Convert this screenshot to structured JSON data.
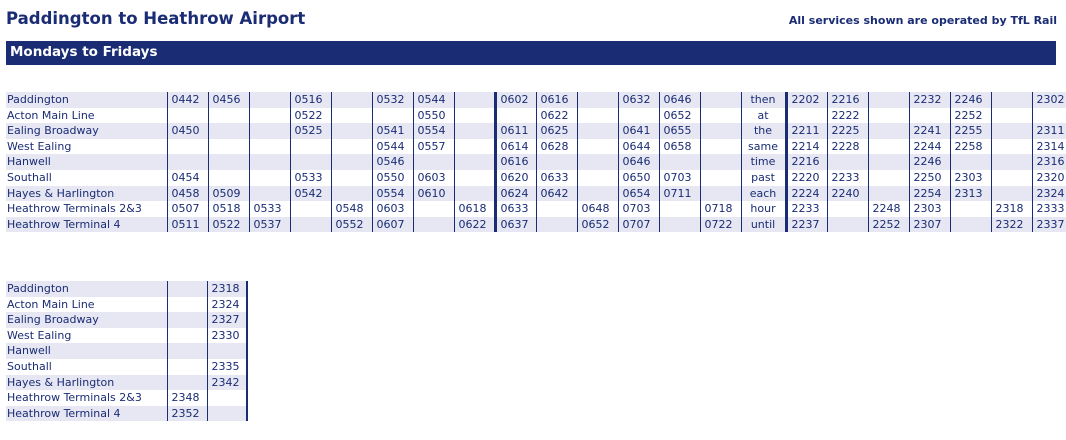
{
  "header": {
    "title": "Paddington to Heathrow Airport",
    "operated_by": "All services shown are operated by TfL Rail",
    "day_banner": "Mondays to Fridays"
  },
  "stations": [
    "Paddington",
    "Acton Main Line",
    "Ealing Broadway",
    "West Ealing",
    "Hanwell",
    "Southall",
    "Hayes & Harlington",
    "Heathrow Terminals 2&3",
    "Heathrow Terminal 4"
  ],
  "table1": {
    "interval_text": [
      "then",
      "at",
      "the",
      "same",
      "time",
      "past",
      "each",
      "hour",
      "until"
    ],
    "pre_columns": [
      [
        "0442",
        "",
        "0450",
        "",
        "",
        "0454",
        "0458",
        "0507",
        "0511"
      ],
      [
        "0456",
        "",
        "",
        "",
        "",
        "",
        "0509",
        "0518",
        "0522"
      ],
      [
        "",
        "",
        "",
        "",
        "",
        "",
        "",
        "0533",
        "0537"
      ],
      [
        "0516",
        "0522",
        "0525",
        "",
        "",
        "0533",
        "0542",
        "",
        ""
      ],
      [
        "",
        "",
        "",
        "",
        "",
        "",
        "",
        "0548",
        "0552"
      ],
      [
        "0532",
        "",
        "0541",
        "0544",
        "0546",
        "0550",
        "0554",
        "0603",
        "0607"
      ],
      [
        "0544",
        "0550",
        "0554",
        "0557",
        "",
        "0603",
        "0610",
        "",
        ""
      ],
      [
        "",
        "",
        "",
        "",
        "",
        "",
        "",
        "0618",
        "0622"
      ]
    ],
    "pattern_columns": [
      [
        "0602",
        "",
        "0611",
        "0614",
        "0616",
        "0620",
        "0624",
        "0633",
        "0637"
      ],
      [
        "0616",
        "0622",
        "0625",
        "0628",
        "",
        "0633",
        "0642",
        "",
        ""
      ],
      [
        "",
        "",
        "",
        "",
        "",
        "",
        "",
        "0648",
        "0652"
      ],
      [
        "0632",
        "",
        "0641",
        "0644",
        "0646",
        "0650",
        "0654",
        "0703",
        "0707"
      ],
      [
        "0646",
        "0652",
        "0655",
        "0658",
        "",
        "0703",
        "0711",
        "",
        ""
      ],
      [
        "",
        "",
        "",
        "",
        "",
        "",
        "",
        "0718",
        "0722"
      ]
    ],
    "post_columns": [
      [
        "2202",
        "",
        "2211",
        "2214",
        "2216",
        "2220",
        "2224",
        "2233",
        "2237"
      ],
      [
        "2216",
        "2222",
        "2225",
        "2228",
        "",
        "2233",
        "2240",
        "",
        ""
      ],
      [
        "",
        "",
        "",
        "",
        "",
        "",
        "",
        "2248",
        "2252"
      ],
      [
        "2232",
        "",
        "2241",
        "2244",
        "2246",
        "2250",
        "2254",
        "2303",
        "2307"
      ],
      [
        "2246",
        "2252",
        "2255",
        "2258",
        "",
        "2303",
        "2313",
        "",
        ""
      ],
      [
        "",
        "",
        "",
        "",
        "",
        "",
        "",
        "2318",
        "2322"
      ],
      [
        "2302",
        "",
        "2311",
        "2314",
        "2316",
        "2320",
        "2324",
        "2333",
        "2337"
      ]
    ]
  },
  "table2": {
    "columns": [
      [
        "",
        "",
        "",
        "",
        "",
        "",
        "",
        "2348",
        "2352"
      ],
      [
        "2318",
        "2324",
        "2327",
        "2330",
        "",
        "2335",
        "2342",
        "",
        ""
      ]
    ]
  }
}
